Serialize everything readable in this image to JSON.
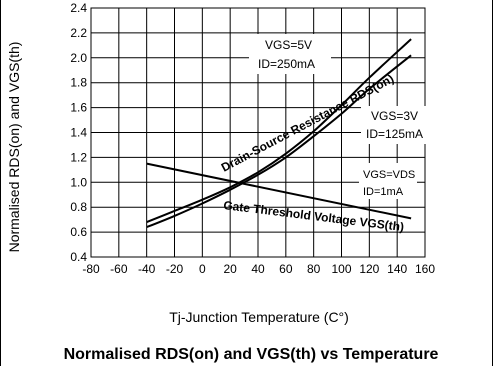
{
  "chart_data": {
    "type": "line",
    "title": "Normalised RDS(on) and VGS(th) vs Temperature",
    "xlabel": "Tj-Junction Temperature (C°)",
    "ylabel": "Normalised RDS(on) and VGS(th)",
    "xlim": [
      -80,
      160
    ],
    "ylim": [
      0.4,
      2.4
    ],
    "x_ticks": [
      -80,
      -60,
      -40,
      -20,
      0,
      20,
      40,
      60,
      80,
      100,
      120,
      140,
      160
    ],
    "y_ticks": [
      0.4,
      0.6,
      0.8,
      1.0,
      1.2,
      1.4,
      1.6,
      1.8,
      2.0,
      2.2,
      2.4
    ],
    "grid": true,
    "series": [
      {
        "name": "Drain-Source Resistance RDS(on)",
        "condition": [
          "VGS=5V",
          "ID=250mA"
        ],
        "color": "#000000",
        "x": [
          -40,
          -20,
          0,
          20,
          40,
          60,
          80,
          100,
          120,
          150
        ],
        "y": [
          0.68,
          0.77,
          0.86,
          0.96,
          1.08,
          1.23,
          1.41,
          1.62,
          1.84,
          2.15
        ]
      },
      {
        "name": "Drain-Source Resistance RDS(on)",
        "condition": [
          "VGS=3V",
          "ID=125mA"
        ],
        "color": "#000000",
        "x": [
          -40,
          -20,
          0,
          20,
          40,
          60,
          80,
          100,
          120,
          150
        ],
        "y": [
          0.64,
          0.73,
          0.83,
          0.94,
          1.06,
          1.2,
          1.37,
          1.55,
          1.75,
          2.02
        ]
      },
      {
        "name": "Gate Threshold Voltage VGS(th)",
        "condition": [
          "VGS=VDS",
          "ID=1mA"
        ],
        "color": "#000000",
        "x": [
          -40,
          150
        ],
        "y": [
          1.15,
          0.71
        ]
      }
    ],
    "annotations": {
      "rds_label": "Drain-Source Resistance RDS(on)",
      "vgs_label": "Gate Threshold Voltage VGS(th)",
      "cond_5v": [
        "VGS=5V",
        "ID=250mA"
      ],
      "cond_3v": [
        "VGS=3V",
        "ID=125mA"
      ],
      "cond_vds": [
        "VGS=VDS",
        "ID=1mA"
      ]
    }
  }
}
